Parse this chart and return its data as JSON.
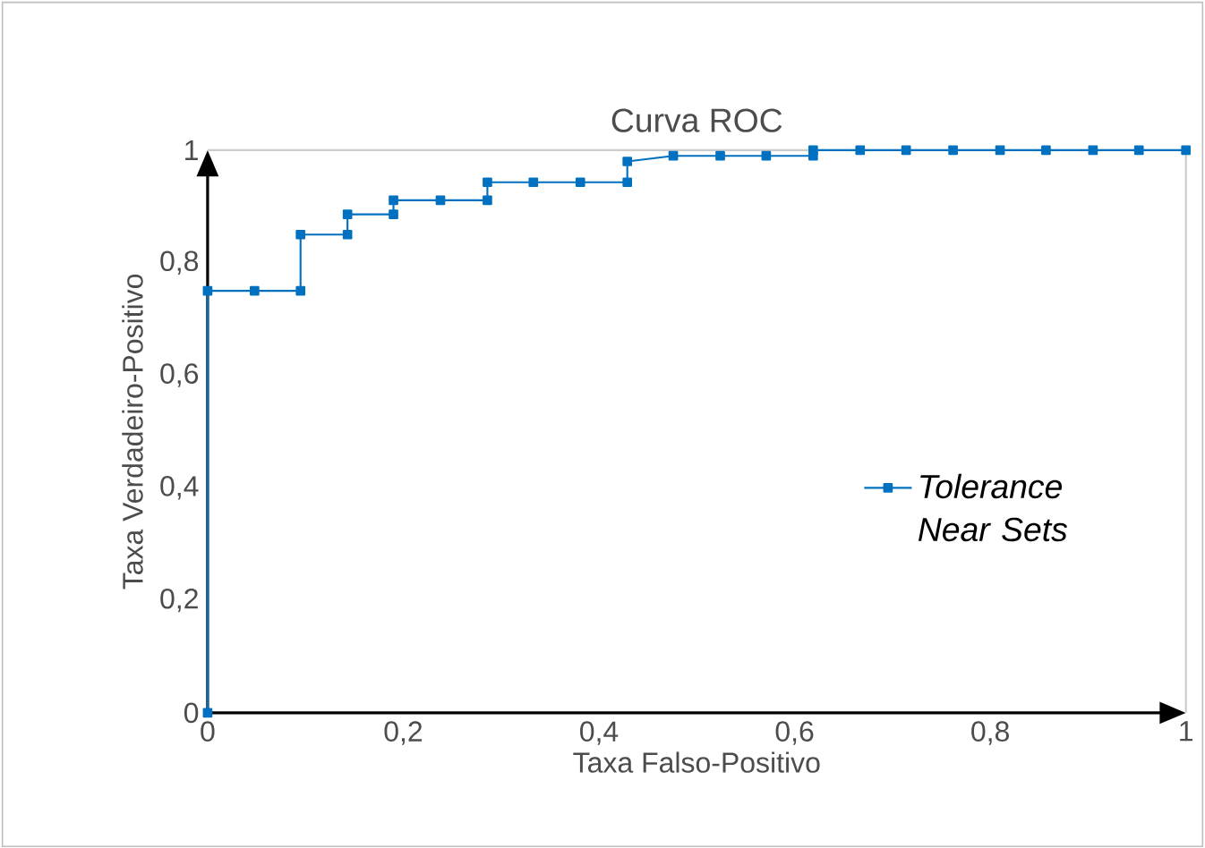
{
  "chart_data": {
    "type": "line",
    "title": "Curva ROC",
    "xlabel": "Taxa Falso-Positivo",
    "ylabel": "Taxa Verdadeiro-Positivo",
    "xlim": [
      0,
      1
    ],
    "ylim": [
      0,
      1
    ],
    "xticks": [
      0,
      {
        "value": 0.2,
        "label": "0,2"
      },
      {
        "value": 0.4,
        "label": "0,4"
      },
      {
        "value": 0.6,
        "label": "0,6"
      },
      {
        "value": 0.8,
        "label": "0,8"
      },
      1
    ],
    "yticks": [
      0,
      {
        "value": 0.2,
        "label": "0,2"
      },
      {
        "value": 0.4,
        "label": "0,4"
      },
      {
        "value": 0.6,
        "label": "0,6"
      },
      {
        "value": 0.8,
        "label": "0,8"
      },
      1
    ],
    "grid": false,
    "legend": "right",
    "marker": "square",
    "line_style": "solid",
    "series": [
      {
        "name": "Tolerance Near Sets",
        "color": "#0070c0",
        "x": [
          0,
          0,
          0.048,
          0.095,
          0.095,
          0.143,
          0.143,
          0.19,
          0.19,
          0.238,
          0.286,
          0.286,
          0.333,
          0.381,
          0.429,
          0.429,
          0.476,
          0.524,
          0.571,
          0.619,
          0.619,
          0.667,
          0.714,
          0.762,
          0.81,
          0.857,
          0.905,
          0.952,
          1
        ],
        "values": [
          0,
          0.75,
          0.75,
          0.75,
          0.85,
          0.85,
          0.886,
          0.886,
          0.911,
          0.911,
          0.911,
          0.943,
          0.943,
          0.943,
          0.943,
          0.98,
          0.99,
          0.99,
          0.99,
          0.99,
          1,
          1,
          1,
          1,
          1,
          1,
          1,
          1,
          1
        ]
      }
    ]
  }
}
